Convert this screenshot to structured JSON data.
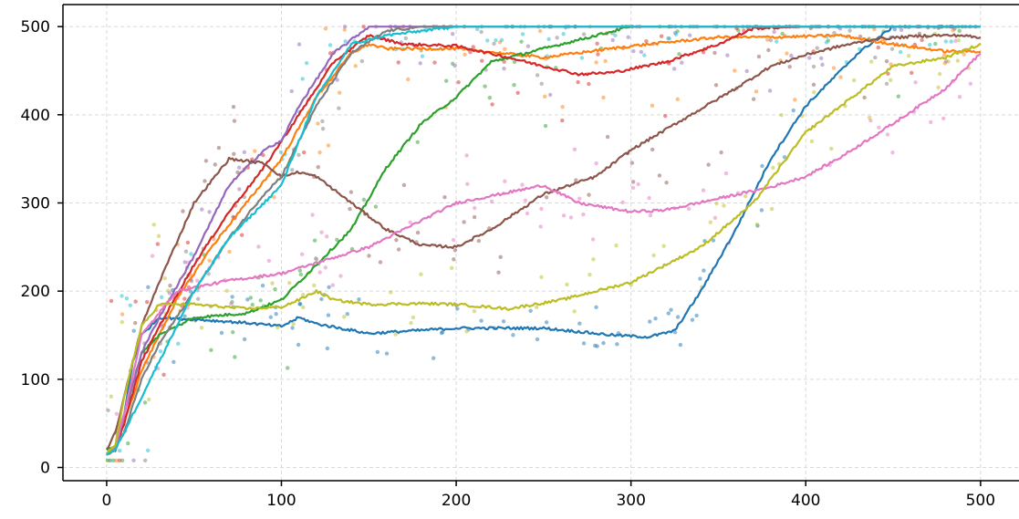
{
  "chart_data": {
    "type": "line",
    "title": "",
    "xlabel": "",
    "ylabel": "",
    "xlim": [
      -25,
      522
    ],
    "ylim": [
      -15,
      525
    ],
    "grid": true,
    "legend": "none",
    "x_ticks": [
      0,
      100,
      200,
      300,
      400,
      500
    ],
    "y_ticks": [
      0,
      100,
      200,
      300,
      400,
      500
    ],
    "x_tick_labels": [
      "0",
      "100",
      "200",
      "300",
      "400",
      "500"
    ],
    "y_tick_labels": [
      "0",
      "100",
      "200",
      "300",
      "400",
      "500"
    ],
    "series": [
      {
        "color": "#1f77b4",
        "scatter_spread": 22,
        "x": [
          0,
          5,
          10,
          15,
          20,
          30,
          50,
          80,
          100,
          110,
          120,
          150,
          200,
          250,
          290,
          310,
          325,
          340,
          360,
          380,
          400,
          430,
          450,
          500
        ],
        "y": [
          15,
          20,
          60,
          120,
          150,
          170,
          168,
          164,
          160,
          170,
          163,
          152,
          158,
          158,
          150,
          148,
          155,
          200,
          270,
          350,
          410,
          470,
          500,
          500
        ]
      },
      {
        "color": "#ff7f0e",
        "scatter_spread": 35,
        "x": [
          0,
          5,
          10,
          20,
          30,
          40,
          60,
          80,
          100,
          120,
          140,
          150,
          160,
          200,
          250,
          300,
          350,
          380,
          420,
          450,
          480,
          500
        ],
        "y": [
          15,
          20,
          50,
          110,
          150,
          190,
          250,
          300,
          350,
          420,
          470,
          480,
          475,
          475,
          465,
          478,
          488,
          488,
          490,
          480,
          472,
          472
        ]
      },
      {
        "color": "#2ca02c",
        "scatter_spread": 35,
        "x": [
          0,
          5,
          10,
          20,
          30,
          50,
          80,
          100,
          120,
          140,
          160,
          180,
          200,
          220,
          240,
          260,
          280,
          300,
          350,
          500
        ],
        "y": [
          20,
          25,
          60,
          130,
          150,
          170,
          175,
          190,
          230,
          270,
          340,
          390,
          420,
          460,
          470,
          480,
          490,
          500,
          500,
          500
        ]
      },
      {
        "color": "#d62728",
        "scatter_spread": 35,
        "x": [
          0,
          5,
          10,
          20,
          30,
          50,
          70,
          90,
          110,
          130,
          150,
          170,
          200,
          230,
          250,
          270,
          290,
          320,
          350,
          370,
          400,
          500
        ],
        "y": [
          15,
          20,
          50,
          120,
          160,
          230,
          290,
          340,
          400,
          460,
          490,
          480,
          478,
          465,
          455,
          446,
          448,
          460,
          480,
          498,
          500,
          500
        ]
      },
      {
        "color": "#9467bd",
        "scatter_spread": 30,
        "x": [
          0,
          5,
          10,
          20,
          30,
          50,
          70,
          90,
          100,
          110,
          130,
          150,
          180,
          500
        ],
        "y": [
          15,
          20,
          60,
          130,
          170,
          240,
          320,
          360,
          370,
          410,
          470,
          500,
          500,
          500
        ]
      },
      {
        "color": "#8c564b",
        "scatter_spread": 30,
        "x": [
          0,
          5,
          10,
          20,
          30,
          50,
          70,
          90,
          100,
          110,
          120,
          140,
          160,
          180,
          200,
          220,
          250,
          280,
          300,
          330,
          360,
          380,
          400,
          420,
          440,
          470,
          490,
          500
        ],
        "y": [
          20,
          40,
          80,
          160,
          210,
          300,
          350,
          345,
          330,
          335,
          330,
          300,
          270,
          252,
          250,
          270,
          310,
          330,
          360,
          395,
          430,
          455,
          468,
          478,
          486,
          490,
          490,
          487
        ]
      },
      {
        "color": "#e377c2",
        "scatter_spread": 25,
        "x": [
          0,
          5,
          10,
          20,
          40,
          70,
          100,
          150,
          200,
          250,
          270,
          300,
          320,
          350,
          380,
          400,
          420,
          450,
          480,
          500
        ],
        "y": [
          15,
          25,
          60,
          150,
          200,
          212,
          220,
          250,
          300,
          320,
          300,
          290,
          292,
          305,
          318,
          330,
          352,
          390,
          430,
          470
        ]
      },
      {
        "color": "#7f7f7f",
        "scatter_spread": 30,
        "x": [
          0,
          5,
          10,
          20,
          30,
          50,
          70,
          90,
          100,
          120,
          140,
          160,
          180,
          500
        ],
        "y": [
          15,
          20,
          40,
          100,
          140,
          200,
          260,
          310,
          330,
          410,
          470,
          495,
          500,
          500
        ]
      },
      {
        "color": "#bcbd22",
        "scatter_spread": 25,
        "x": [
          0,
          5,
          10,
          20,
          30,
          50,
          80,
          100,
          110,
          120,
          130,
          150,
          180,
          200,
          230,
          260,
          300,
          340,
          370,
          400,
          420,
          440,
          450,
          480,
          500
        ],
        "y": [
          15,
          25,
          80,
          160,
          185,
          185,
          180,
          182,
          190,
          200,
          190,
          185,
          186,
          185,
          180,
          190,
          210,
          250,
          300,
          380,
          410,
          440,
          455,
          465,
          480
        ]
      },
      {
        "color": "#17becf",
        "scatter_spread": 30,
        "x": [
          0,
          5,
          10,
          20,
          30,
          50,
          70,
          90,
          100,
          120,
          140,
          160,
          200,
          500
        ],
        "y": [
          15,
          20,
          40,
          80,
          120,
          200,
          260,
          300,
          320,
          420,
          480,
          490,
          500,
          500
        ]
      }
    ]
  }
}
